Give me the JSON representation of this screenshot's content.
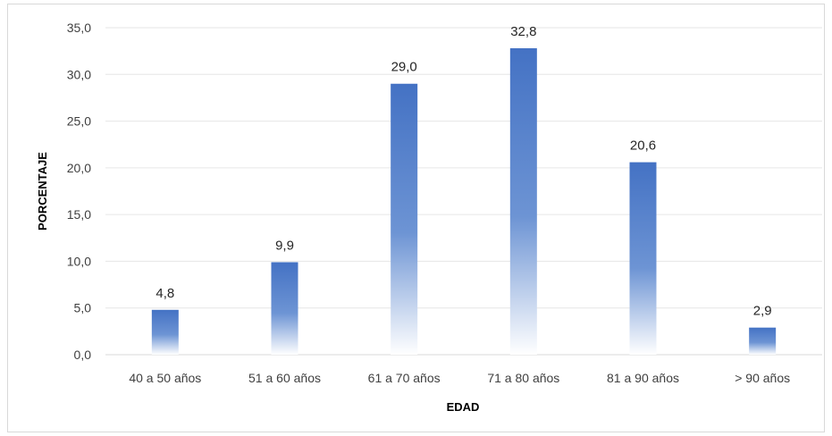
{
  "chart_data": {
    "type": "bar",
    "categories": [
      "40 a 50 años",
      "51 a 60 años",
      "61 a 70 años",
      "71 a 80 años",
      "81 a 90 años",
      "> 90 años"
    ],
    "values": [
      4.8,
      9.9,
      29.0,
      32.8,
      20.6,
      2.9
    ],
    "value_labels": [
      "4,8",
      "9,9",
      "29,0",
      "32,8",
      "20,6",
      "2,9"
    ],
    "xlabel": "EDAD",
    "ylabel": "PORCENTAJE",
    "ylim": [
      0,
      35
    ],
    "yticks": [
      "0,0",
      "5,0",
      "10,0",
      "15,0",
      "20,0",
      "25,0",
      "30,0",
      "35,0"
    ],
    "grid": true,
    "legend": "none",
    "bar_color": "#4472c4"
  }
}
